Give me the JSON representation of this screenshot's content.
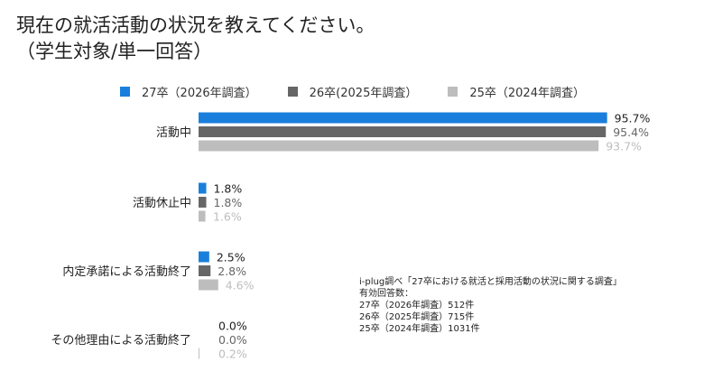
{
  "title_lines": [
    "現在の就活活動の状況を教えてください。",
    "（学生対象/単一回答）"
  ],
  "note_lines": [
    "i-plug調べ「27卒における就活と採用活動の状況に関する調査」",
    "有効回答数：",
    "27卒（2026年調査）512件",
    "26卒（2025年調査）715件",
    "25卒（2024年調査）1031件"
  ],
  "chart_data": {
    "type": "bar",
    "orientation": "horizontal",
    "title": "現在の就活活動の状況を教えてください。（学生対象/単一回答）",
    "categories": [
      "活動中",
      "活動休止中",
      "内定承諾による活動終了",
      "その他理由による活動終了"
    ],
    "series": [
      {
        "name": "27卒（2026年調査）",
        "color": "#1a7fdc",
        "label_color": "#222222",
        "values": [
          95.7,
          1.8,
          2.5,
          0.0
        ]
      },
      {
        "name": "26卒(2025年調査）",
        "color": "#666666",
        "label_color": "#666666",
        "values": [
          95.4,
          1.8,
          2.8,
          0.0
        ]
      },
      {
        "name": "25卒（2024年調査）",
        "color": "#bdbdbd",
        "label_color": "#bdbdbd",
        "values": [
          93.7,
          1.6,
          4.6,
          0.2
        ]
      }
    ],
    "unit": "%",
    "xlim": [
      0,
      100
    ],
    "grid": false,
    "legend_position": "top"
  }
}
